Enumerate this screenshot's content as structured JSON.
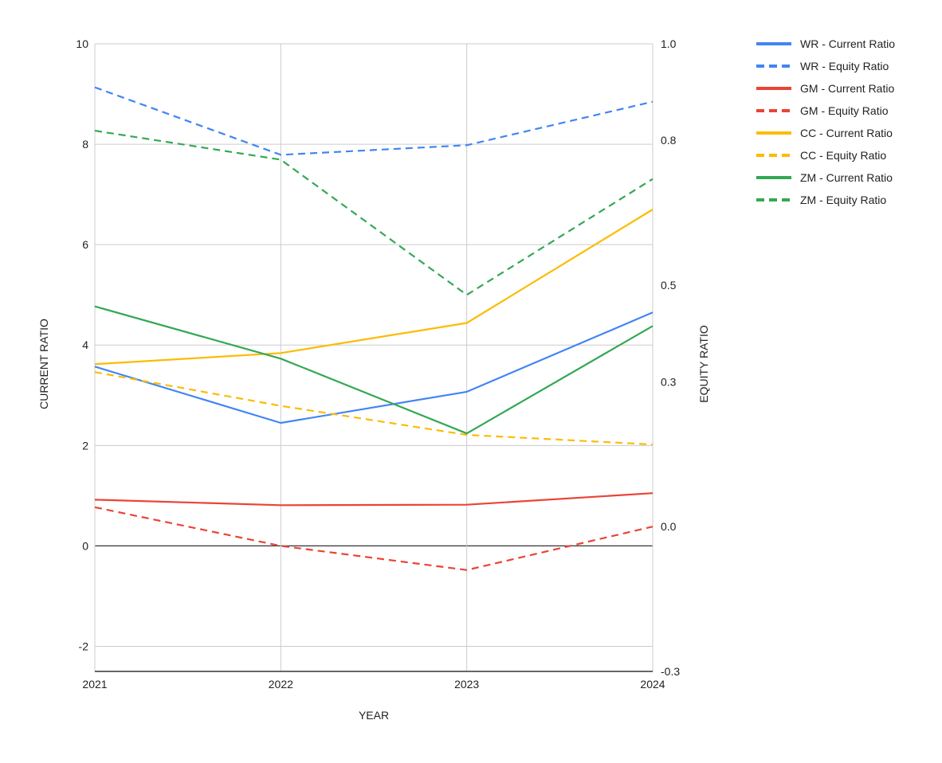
{
  "chart_data": {
    "type": "line",
    "title": "",
    "xlabel": "YEAR",
    "ylabel_left": "CURRENT RATIO",
    "ylabel_right": "EQUITY RATIO",
    "x": [
      "2021",
      "2022",
      "2023",
      "2024"
    ],
    "y_left_lim": [
      -2.5,
      10
    ],
    "y_left_ticks": [
      "-2",
      "0",
      "2",
      "4",
      "6",
      "8",
      "10"
    ],
    "y_right_lim": [
      -0.3,
      1.0
    ],
    "y_right_ticks": [
      "-0.3",
      "0.0",
      "0.3",
      "0.5",
      "0.8",
      "1.0"
    ],
    "grid": true,
    "legend_position": "right",
    "series": [
      {
        "name": "WR - Current Ratio",
        "axis": "left",
        "style": "solid",
        "color": "#4285F4",
        "values": [
          3.57,
          2.45,
          3.07,
          4.65
        ]
      },
      {
        "name": "WR - Equity Ratio",
        "axis": "right",
        "style": "dashed",
        "color": "#4285F4",
        "values": [
          0.91,
          0.77,
          0.79,
          0.88
        ]
      },
      {
        "name": "GM - Current Ratio",
        "axis": "left",
        "style": "solid",
        "color": "#EA4335",
        "values": [
          0.92,
          0.81,
          0.82,
          1.05
        ]
      },
      {
        "name": "GM - Equity Ratio",
        "axis": "right",
        "style": "dashed",
        "color": "#EA4335",
        "values": [
          0.04,
          -0.04,
          -0.09,
          0.0
        ]
      },
      {
        "name": "CC - Current Ratio",
        "axis": "left",
        "style": "solid",
        "color": "#FBBC04",
        "values": [
          3.62,
          3.84,
          4.44,
          6.7
        ]
      },
      {
        "name": "CC - Equity Ratio",
        "axis": "right",
        "style": "dashed",
        "color": "#FBBC04",
        "values": [
          0.32,
          0.25,
          0.19,
          0.17
        ]
      },
      {
        "name": "ZM - Current Ratio",
        "axis": "left",
        "style": "solid",
        "color": "#34A853",
        "values": [
          4.77,
          3.73,
          2.24,
          4.38
        ]
      },
      {
        "name": "ZM - Equity Ratio",
        "axis": "right",
        "style": "dashed",
        "color": "#34A853",
        "values": [
          0.82,
          0.76,
          0.48,
          0.72
        ]
      }
    ]
  }
}
